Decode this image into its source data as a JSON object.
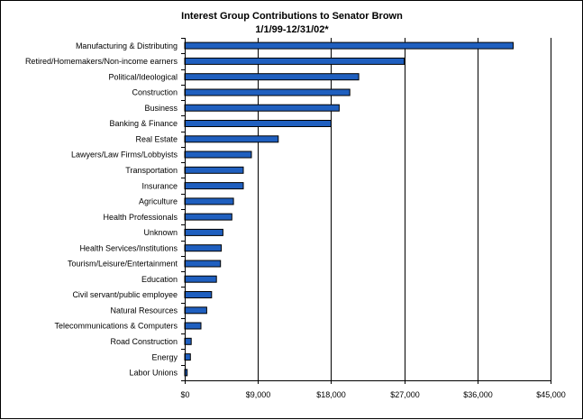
{
  "chart_data": {
    "type": "bar",
    "orientation": "horizontal",
    "title": "Interest Group Contributions to Senator Brown",
    "subtitle": "1/1/99-12/31/02*",
    "xlabel": "",
    "ylabel": "",
    "xlim": [
      0,
      45000
    ],
    "x_ticks": [
      0,
      9000,
      18000,
      27000,
      36000,
      45000
    ],
    "x_tick_labels": [
      "$0",
      "$9,000",
      "$18,000",
      "$27,000",
      "$36,000",
      "$45,000"
    ],
    "grid": "vertical major gridlines",
    "legend": "none",
    "bar_color": "#1f5fbf",
    "categories": [
      "Manufacturing & Distributing",
      "Retired/Homemakers/Non-income earners",
      "Political/Ideological",
      "Construction",
      "Business",
      "Banking & Finance",
      "Real Estate",
      "Lawyers/Law Firms/Lobbyists",
      "Transportation",
      "Insurance",
      "Agriculture",
      "Health Professionals",
      "Unknown",
      "Health Services/Institutions",
      "Tourism/Leisure/Entertainment",
      "Education",
      "Civil servant/public employee",
      "Natural Resources",
      "Telecommunications & Computers",
      "Road Construction",
      "Energy",
      "Labor Unions"
    ],
    "values": [
      40400,
      27000,
      21400,
      20300,
      19000,
      18000,
      11500,
      8200,
      7200,
      7200,
      6000,
      5800,
      4700,
      4500,
      4400,
      3900,
      3300,
      2700,
      2000,
      800,
      700,
      300
    ]
  }
}
